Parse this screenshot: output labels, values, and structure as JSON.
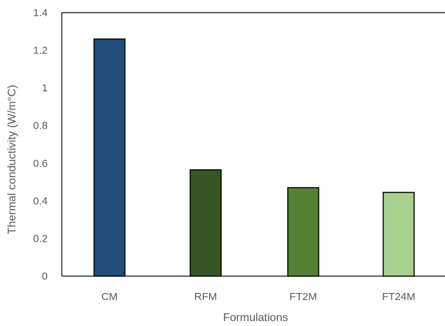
{
  "chart_data": {
    "type": "bar",
    "categories": [
      "CM",
      "RFM",
      "FT2M",
      "FT24M"
    ],
    "values": [
      1.26,
      0.565,
      0.47,
      0.445
    ],
    "bar_colors": [
      "#1f4e79",
      "#375623",
      "#548235",
      "#a9d18e"
    ],
    "xlabel": "Formulations",
    "ylabel": "Thermal conductivity (W/m°C)",
    "ylim": [
      0,
      1.4
    ],
    "yticks": [
      "0",
      "0.2",
      "0.4",
      "0.6",
      "0.8",
      "1",
      "1.2",
      "1.4"
    ],
    "grid": false,
    "legend": "none"
  }
}
